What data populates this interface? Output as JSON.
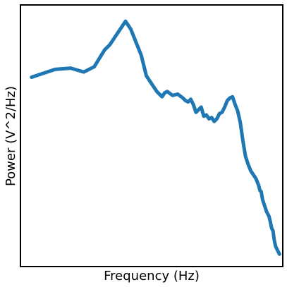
{
  "chart_data": {
    "type": "line",
    "title": "",
    "xlabel": "Frequency (Hz)",
    "ylabel": "Power (V^2/Hz)",
    "x_ticks_visible": false,
    "y_ticks_visible": false,
    "grid": false,
    "legend": "none",
    "xlim": [
      0,
      100
    ],
    "ylim": [
      0,
      100
    ],
    "series": [
      {
        "color": "#1f77b4",
        "points": [
          [
            4,
            72.5
          ],
          [
            13,
            75.5
          ],
          [
            19,
            76
          ],
          [
            24,
            74.5
          ],
          [
            28,
            76.5
          ],
          [
            32,
            83
          ],
          [
            34,
            85
          ],
          [
            36,
            88
          ],
          [
            38,
            91
          ],
          [
            40,
            94
          ],
          [
            42,
            91
          ],
          [
            44,
            86
          ],
          [
            46,
            81
          ],
          [
            47,
            77
          ],
          [
            48,
            73
          ],
          [
            50,
            70
          ],
          [
            52,
            67
          ],
          [
            54,
            65
          ],
          [
            55,
            66.5
          ],
          [
            56,
            67
          ],
          [
            58,
            65.5
          ],
          [
            60,
            66
          ],
          [
            62,
            64.5
          ],
          [
            63,
            63.5
          ],
          [
            64,
            63
          ],
          [
            65,
            64
          ],
          [
            66,
            62
          ],
          [
            67,
            59
          ],
          [
            68,
            60
          ],
          [
            69,
            61
          ],
          [
            70,
            57.5
          ],
          [
            71,
            58
          ],
          [
            72,
            56.5
          ],
          [
            73,
            57
          ],
          [
            74,
            55.5
          ],
          [
            75,
            56.5
          ],
          [
            76,
            58.5
          ],
          [
            77,
            59
          ],
          [
            78,
            61
          ],
          [
            79,
            63.5
          ],
          [
            80,
            64.5
          ],
          [
            81,
            65
          ],
          [
            82,
            62
          ],
          [
            83,
            59.5
          ],
          [
            84,
            55
          ],
          [
            85,
            48
          ],
          [
            86,
            42
          ],
          [
            87,
            39
          ],
          [
            88,
            36.5
          ],
          [
            89,
            35
          ],
          [
            90,
            33.5
          ],
          [
            91,
            31
          ],
          [
            91.5,
            29
          ],
          [
            92,
            28.5
          ],
          [
            92.5,
            25.5
          ],
          [
            93,
            24
          ],
          [
            93.5,
            22.5
          ],
          [
            94,
            21
          ],
          [
            94.5,
            20
          ],
          [
            95,
            19
          ],
          [
            95.5,
            17
          ],
          [
            96,
            14.5
          ],
          [
            96.5,
            13.5
          ],
          [
            97,
            10
          ],
          [
            97.5,
            7.5
          ],
          [
            98,
            6.5
          ],
          [
            98.5,
            5.5
          ],
          [
            99,
            4.5
          ]
        ]
      }
    ]
  }
}
